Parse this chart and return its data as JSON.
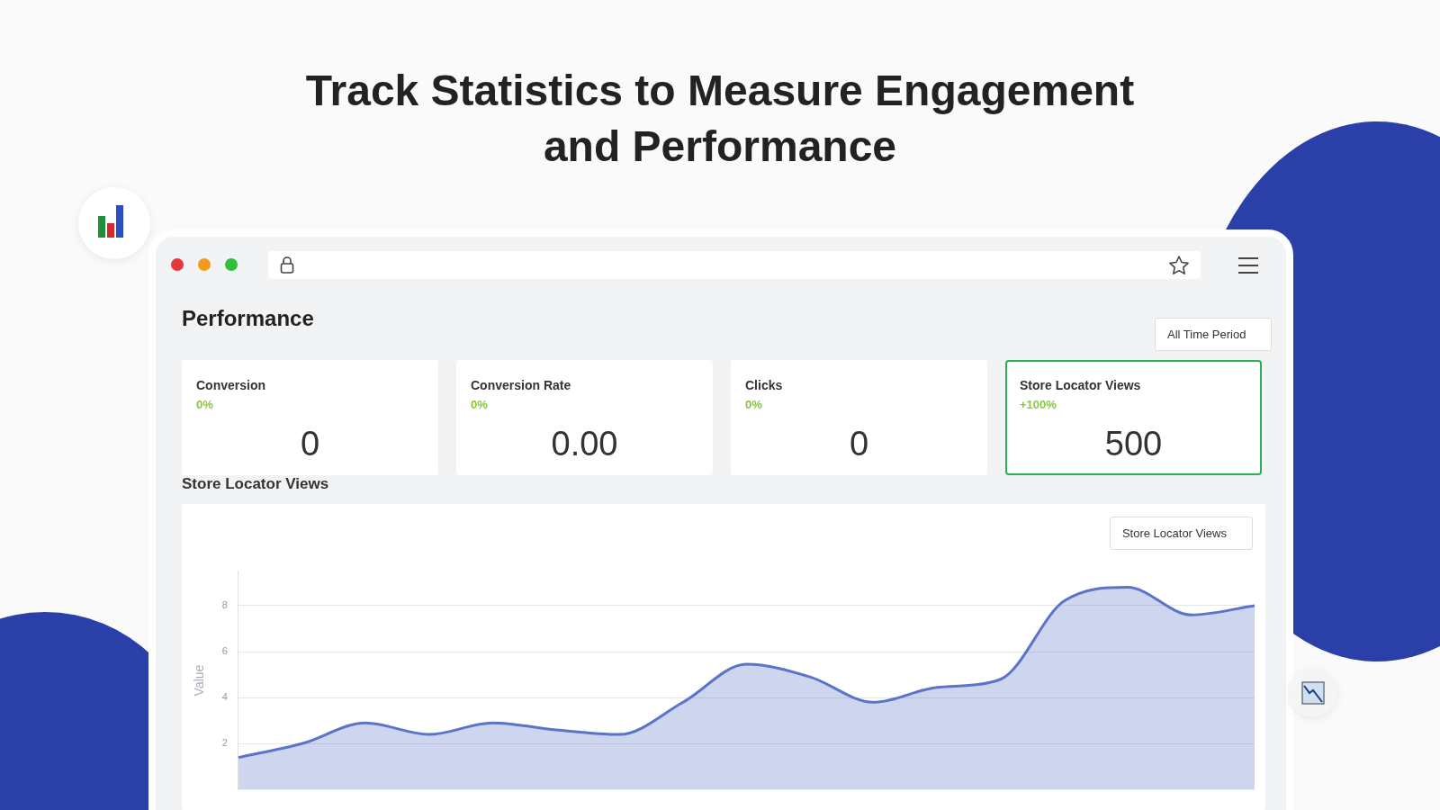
{
  "chart_data": [
    {
      "type": "other",
      "title": "Track Statistics to Measure Engagement and Performance",
      "annotations": [
        "Performance",
        "All Time Period",
        "Conversion",
        "0%",
        "0",
        "Conversion Rate",
        "0%",
        "0.00",
        "Clicks",
        "0%",
        "0",
        "Store Locator Views",
        "+100%",
        "500"
      ]
    },
    {
      "type": "area",
      "title": "Store Locator Views",
      "ylabel": "Value",
      "annotations": [
        "Store Locator Views"
      ],
      "categories": [
        null,
        null,
        null,
        null,
        null,
        null,
        null,
        null,
        null,
        null,
        null,
        null,
        null,
        null,
        null,
        null,
        null
      ],
      "series": [
        {
          "color": "#5b73c9",
          "values": [
            1.4,
            2.0,
            2.9,
            2.4,
            2.9,
            2.6,
            2.4,
            3.8,
            5.45,
            4.9,
            3.8,
            4.45,
            4.8,
            8.2,
            8.8,
            7.6,
            8.0
          ]
        }
      ],
      "ylim": [
        0,
        9.5
      ],
      "yticks": [
        2,
        4,
        6,
        8
      ],
      "grid": "y",
      "tick_labels": "y",
      "marker": "none"
    }
  ]
}
